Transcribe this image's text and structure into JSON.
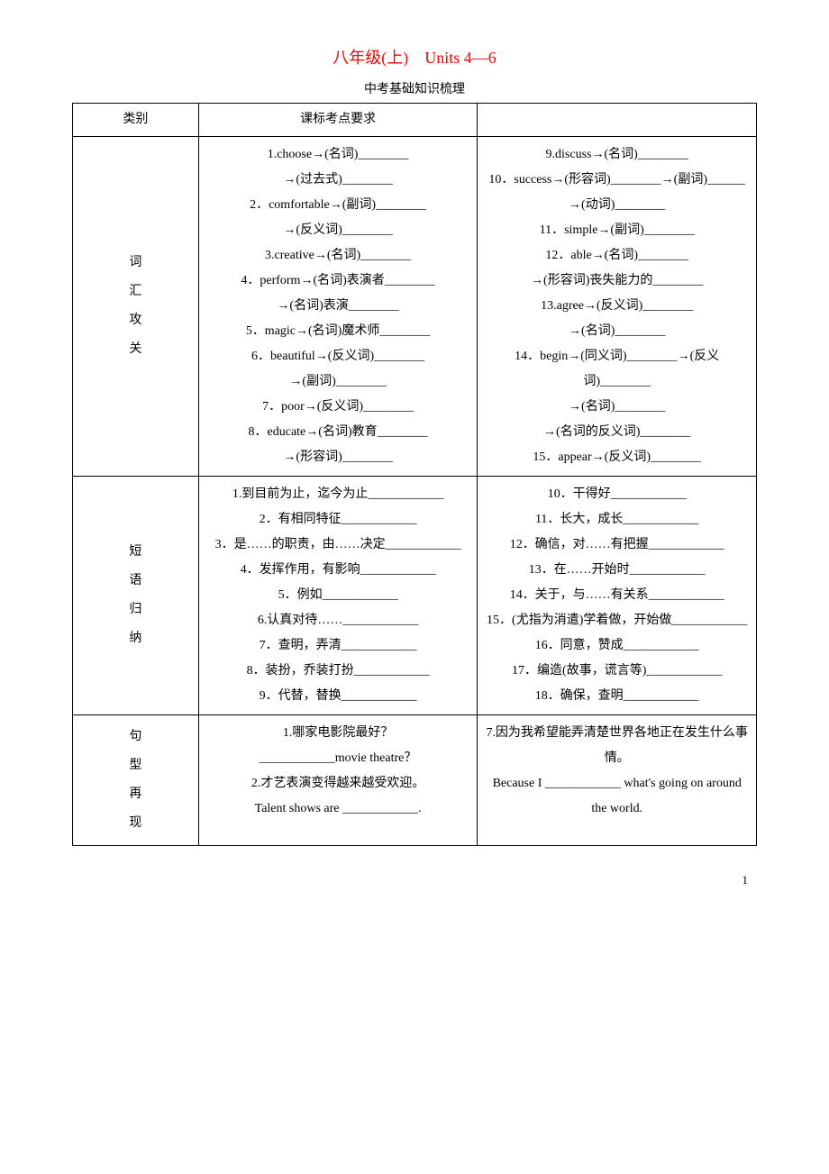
{
  "title": "八年级(上)　Units 4—6",
  "subtitle": "中考基础知识梳理",
  "header": {
    "col1": "类别",
    "col2": "课标考点要求",
    "col3": ""
  },
  "categories": {
    "vocab": "词汇攻关",
    "phrase": "短语归纳",
    "sentence": "句型再现"
  },
  "vocab_left": [
    "1.choose→(名词)________",
    "→(过去式)________",
    "2．comfortable→(副词)________",
    "→(反义词)________",
    "3.creative→(名词)________",
    "4．perform→(名词)表演者________",
    "→(名词)表演________",
    "5．magic→(名词)魔术师________",
    "6．beautiful→(反义词)________",
    "→(副词)________",
    "7．poor→(反义词)________",
    "8．educate→(名词)教育________",
    "→(形容词)________"
  ],
  "vocab_right": [
    "9.discuss→(名词)________",
    "10．success→(形容词)________→(副词)______",
    "→(动词)________",
    "11．simple→(副词)________",
    "12．able→(名词)________",
    "→(形容词)丧失能力的________",
    "13.agree→(反义词)________",
    "→(名词)________",
    "14．begin→(同义词)________→(反义词)________",
    "→(名词)________",
    "→(名词的反义词)________",
    "15．appear→(反义词)________"
  ],
  "phrase_left": [
    "1.到目前为止，迄今为止____________",
    "2．有相同特征____________",
    "3．是……的职责，由……决定____________",
    "4．发挥作用，有影响____________",
    "5．例如____________",
    "6.认真对待……____________",
    "7．查明，弄清____________",
    "8．装扮，乔装打扮____________",
    "9．代替，替换____________"
  ],
  "phrase_right": [
    "10．干得好____________",
    "11．长大，成长____________",
    "12．确信，对……有把握____________",
    "13．在……开始时____________",
    "14．关于，与……有关系____________",
    "15．(尤指为消遣)学着做，开始做____________",
    "16．同意，赞成____________",
    "17．编造(故事，谎言等)____________",
    "18．确保，查明____________"
  ],
  "sentence_left": [
    "1.哪家电影院最好？",
    "____________movie theatre？",
    "2.才艺表演变得越来越受欢迎。",
    "Talent shows are ____________."
  ],
  "sentence_right": [
    "7.因为我希望能弄清楚世界各地正在发生什么事情。",
    "Because I ____________ what's going on around the world."
  ],
  "page_number": "1",
  "colors": {
    "title_color": "#ff0000",
    "text_color": "#000000",
    "border_color": "#000000",
    "background": "#ffffff"
  }
}
